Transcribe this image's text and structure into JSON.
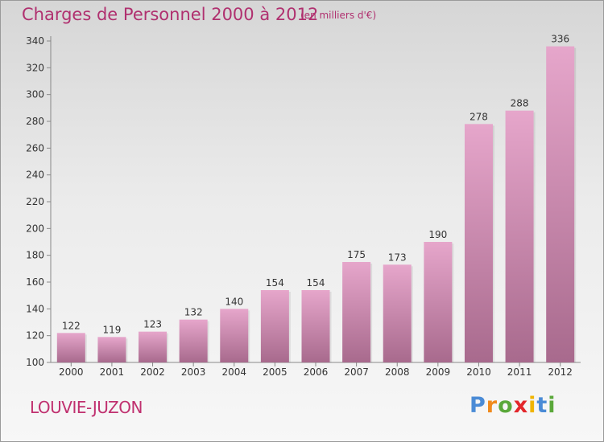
{
  "header": {
    "title": "Charges de Personnel 2000 à 2012",
    "unit_note": "(en milliers d'€)"
  },
  "footer": {
    "commune": "LOUVIE-JUZON",
    "logo_letters": [
      "P",
      "r",
      "o",
      "x",
      "i",
      "t",
      "i"
    ]
  },
  "colors": {
    "title": "#b0306f",
    "bar_top": "#e6a6cb",
    "bar_bottom": "#a86a8d",
    "logo": [
      "#4a8bd6",
      "#f08a1c",
      "#5aa83a",
      "#e3262b",
      "#f0b400",
      "#4a8bd6",
      "#5aa83a"
    ]
  },
  "chart_data": {
    "type": "bar",
    "categories": [
      "2000",
      "2001",
      "2002",
      "2003",
      "2004",
      "2005",
      "2006",
      "2007",
      "2008",
      "2009",
      "2010",
      "2011",
      "2012"
    ],
    "values": [
      122,
      119,
      123,
      132,
      140,
      154,
      154,
      175,
      173,
      190,
      278,
      288,
      336
    ],
    "ylim": [
      100,
      340
    ],
    "yticks": [
      100,
      120,
      140,
      160,
      180,
      200,
      220,
      240,
      260,
      280,
      300,
      320,
      340
    ],
    "grid": false,
    "legend": "none"
  }
}
